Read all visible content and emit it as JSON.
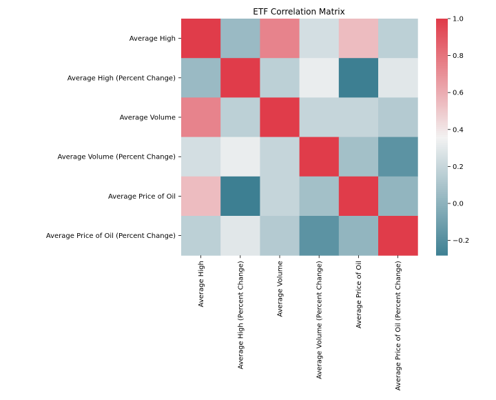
{
  "chart_data": {
    "type": "heatmap",
    "title": "ETF Correlation Matrix",
    "xlabel": "",
    "ylabel": "",
    "row_labels": [
      "Average High",
      "Average High (Percent Change)",
      "Average Volume",
      "Average Volume (Percent Change)",
      "Average Price of Oil",
      "Average Price of Oil (Percent Change)"
    ],
    "col_labels": [
      "Average High",
      "Average High (Percent Change)",
      "Average Volume",
      "Average Volume (Percent Change)",
      "Average Price of Oil",
      "Average Price of Oil (Percent Change)"
    ],
    "values": [
      [
        1.0,
        0.05,
        0.75,
        0.25,
        0.55,
        0.17
      ],
      [
        0.05,
        1.0,
        0.17,
        0.33,
        -0.28,
        0.3
      ],
      [
        0.75,
        0.17,
        1.0,
        0.2,
        0.2,
        0.14
      ],
      [
        0.25,
        0.33,
        0.2,
        1.0,
        0.08,
        -0.17
      ],
      [
        0.55,
        -0.28,
        0.2,
        0.08,
        1.0,
        0.02
      ],
      [
        0.17,
        0.3,
        0.14,
        -0.17,
        0.02,
        1.0
      ]
    ],
    "colorbar": {
      "vmin": -0.28,
      "vmax": 1.0,
      "ticks": [
        -0.2,
        0.0,
        0.2,
        0.4,
        0.6,
        0.8,
        1.0
      ],
      "tick_labels": [
        "−0.2",
        "0.0",
        "0.2",
        "0.4",
        "0.6",
        "0.8",
        "1.0"
      ],
      "color_low": "#3d7f92",
      "color_mid": "#f2f2f2",
      "color_high": "#e03c4a",
      "center": 0.36
    }
  }
}
